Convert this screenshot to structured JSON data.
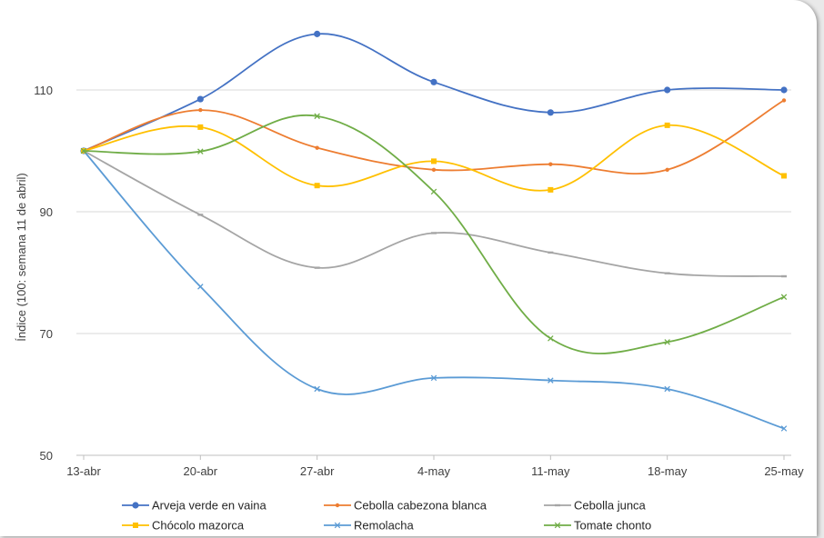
{
  "chart_data": {
    "type": "line",
    "title": "",
    "xlabel": "",
    "ylabel": "Índice (100: semana 11 de abril)",
    "ylim": [
      50,
      120
    ],
    "yticks": [
      50,
      70,
      90,
      110
    ],
    "grid": true,
    "legend_placement": "bottom",
    "smooth": true,
    "categories": [
      "13-abr",
      "20-abr",
      "27-abr",
      "4-may",
      "11-may",
      "18-may",
      "25-may"
    ],
    "series": [
      {
        "name": "Arveja verde en vaina",
        "color": "#4472c4",
        "marker": "circle",
        "values": [
          100,
          108.5,
          119.2,
          111.3,
          106.3,
          110.0,
          110.0
        ]
      },
      {
        "name": "Cebolla cabezona blanca",
        "color": "#ed7d31",
        "marker": "dot",
        "values": [
          100,
          106.7,
          100.5,
          96.9,
          97.8,
          96.9,
          108.3
        ]
      },
      {
        "name": "Cebolla junca",
        "color": "#a5a5a5",
        "marker": "dash",
        "values": [
          100,
          89.5,
          80.8,
          86.5,
          83.3,
          79.9,
          79.4
        ]
      },
      {
        "name": "Chócolo mazorca",
        "color": "#ffc000",
        "marker": "square",
        "values": [
          100,
          103.9,
          94.3,
          98.3,
          93.6,
          104.2,
          95.9
        ]
      },
      {
        "name": "Remolacha",
        "color": "#5b9bd5",
        "marker": "x",
        "values": [
          100,
          77.7,
          60.9,
          62.7,
          62.3,
          60.9,
          54.4
        ]
      },
      {
        "name": "Tomate chonto",
        "color": "#70ad47",
        "marker": "x",
        "values": [
          100,
          99.9,
          105.7,
          93.3,
          69.2,
          68.6,
          76.0
        ]
      }
    ]
  }
}
